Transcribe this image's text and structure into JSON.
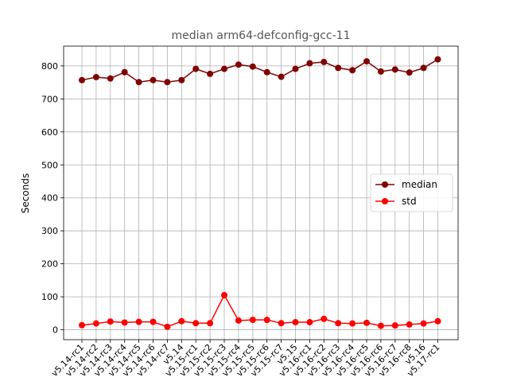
{
  "chart_data": {
    "type": "line",
    "title": "median arm64-defconfig-gcc-11",
    "xlabel": "",
    "ylabel": "Seconds",
    "categories": [
      "v5.14-rc1",
      "v5.14-rc2",
      "v5.14-rc3",
      "v5.14-rc4",
      "v5.14-rc5",
      "v5.14-rc6",
      "v5.14-rc7",
      "v5.14",
      "v5.15-rc1",
      "v5.15-rc2",
      "v5.15-rc3",
      "v5.15-rc4",
      "v5.15-rc5",
      "v5.15-rc6",
      "v5.15-rc7",
      "v5.15",
      "v5.16-rc1",
      "v5.16-rc2",
      "v5.16-rc3",
      "v5.16-rc4",
      "v5.16-rc5",
      "v5.16-rc6",
      "v5.16-rc7",
      "v5.16-rc8",
      "v5.16",
      "v5.17-rc1"
    ],
    "ylim": [
      -30,
      860
    ],
    "yticks": [
      0,
      100,
      200,
      300,
      400,
      500,
      600,
      700,
      800
    ],
    "grid": true,
    "legend_position": "center-right",
    "series": [
      {
        "name": "median",
        "color": "#800000",
        "values": [
          757,
          766,
          762,
          781,
          751,
          757,
          751,
          757,
          791,
          776,
          791,
          804,
          798,
          781,
          767,
          791,
          808,
          812,
          794,
          787,
          814,
          783,
          789,
          780,
          794,
          820
        ]
      },
      {
        "name": "std",
        "color": "#ff0000",
        "values": [
          14,
          19,
          25,
          22,
          24,
          24,
          9,
          26,
          20,
          20,
          105,
          28,
          30,
          30,
          20,
          23,
          23,
          33,
          20,
          19,
          21,
          12,
          13,
          16,
          19,
          26
        ]
      }
    ]
  }
}
